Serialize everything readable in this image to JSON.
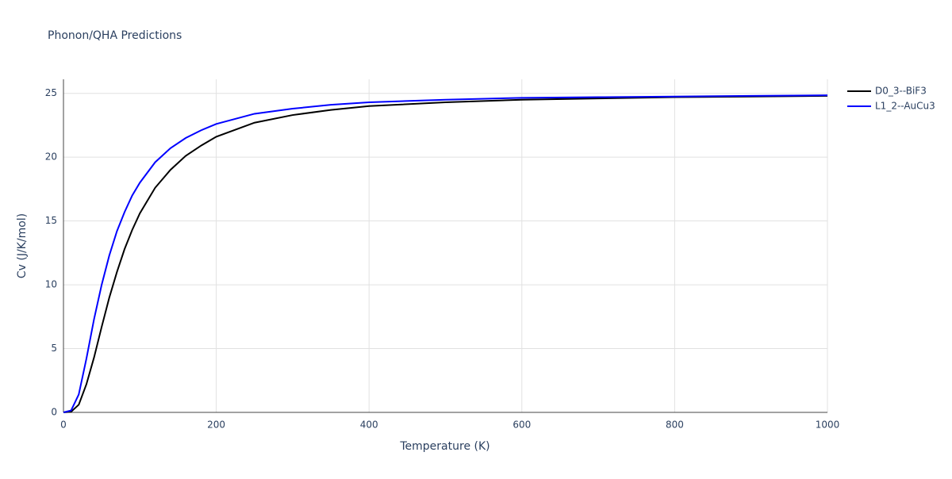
{
  "chart_data": {
    "type": "line",
    "title": "Phonon/QHA Predictions",
    "x_label": "Temperature (K)",
    "y_label": "Cv (J/K/mol)",
    "x": [
      0,
      10,
      20,
      30,
      40,
      50,
      60,
      70,
      80,
      90,
      100,
      120,
      140,
      160,
      180,
      200,
      250,
      300,
      350,
      400,
      500,
      600,
      700,
      800,
      900,
      1000
    ],
    "series": [
      {
        "name": "D0_3--BiF3",
        "color": "#000000",
        "values": [
          0,
          0.05,
          0.6,
          2.2,
          4.3,
          6.7,
          9.0,
          11.0,
          12.8,
          14.3,
          15.6,
          17.6,
          19.0,
          20.1,
          20.9,
          21.6,
          22.7,
          23.3,
          23.7,
          24.0,
          24.3,
          24.5,
          24.6,
          24.7,
          24.75,
          24.8
        ]
      },
      {
        "name": "L1_2--AuCu3",
        "color": "#0000ff",
        "values": [
          0,
          0.15,
          1.4,
          4.2,
          7.3,
          10.0,
          12.3,
          14.2,
          15.7,
          17.0,
          18.0,
          19.6,
          20.7,
          21.5,
          22.1,
          22.6,
          23.4,
          23.8,
          24.1,
          24.3,
          24.5,
          24.65,
          24.7,
          24.75,
          24.8,
          24.85
        ]
      }
    ],
    "xlim": [
      0,
      1000
    ],
    "xticks": [
      0,
      200,
      400,
      600,
      800,
      1000
    ],
    "ylim": [
      0,
      26.1
    ],
    "yticks": [
      0,
      5,
      10,
      15,
      20,
      25
    ],
    "grid": true,
    "legend": "top-right"
  }
}
